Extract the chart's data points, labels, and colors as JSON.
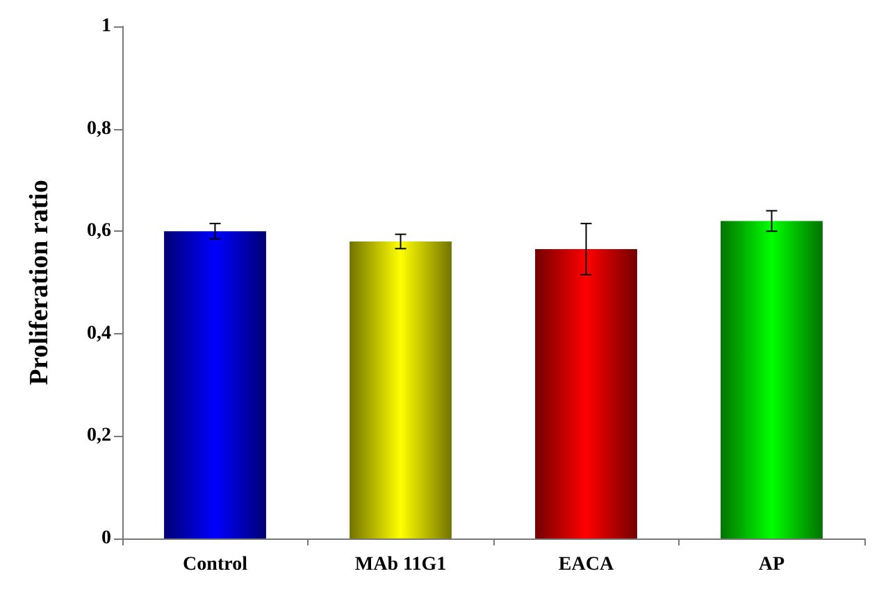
{
  "chart_data": {
    "type": "bar",
    "ylabel": "Proliferation ratio",
    "categories": [
      "Control",
      "MAb 11G1",
      "EACA",
      "AP"
    ],
    "values": [
      0.6,
      0.58,
      0.565,
      0.62
    ],
    "errors": [
      0.015,
      0.014,
      0.05,
      0.02
    ],
    "colors": [
      "#0000ff",
      "#ffff00",
      "#ff0000",
      "#00ff00"
    ],
    "ylim": [
      0,
      1
    ],
    "yticks": [
      {
        "value": 0,
        "label": "0"
      },
      {
        "value": 0.2,
        "label": "0,2"
      },
      {
        "value": 0.4,
        "label": "0,4"
      },
      {
        "value": 0.6,
        "label": "0,6"
      },
      {
        "value": 0.8,
        "label": "0,8"
      },
      {
        "value": 1,
        "label": "1"
      }
    ],
    "grid": false
  }
}
